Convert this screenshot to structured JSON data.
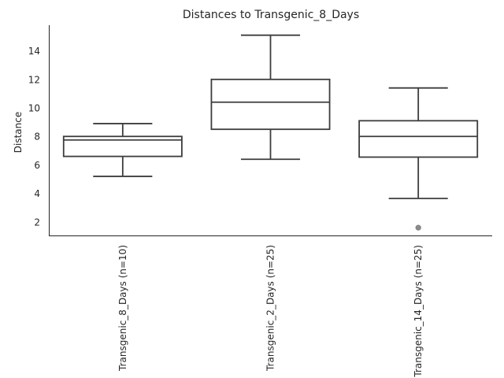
{
  "chart_data": {
    "type": "box",
    "title": "Distances to Transgenic_8_Days",
    "xlabel": "",
    "ylabel": "Distance",
    "ylim": [
      1.0,
      15.8
    ],
    "yticks": [
      2,
      4,
      6,
      8,
      10,
      12,
      14
    ],
    "categories": [
      "Transgenic_8_Days (n=10)",
      "Transgenic_2_Days (n=25)",
      "Transgenic_14_Days (n=25)"
    ],
    "boxes": [
      {
        "whisker_low": 5.2,
        "q1": 6.6,
        "median": 7.75,
        "q3": 8.0,
        "whisker_high": 8.9,
        "outliers": []
      },
      {
        "whisker_low": 6.4,
        "q1": 8.5,
        "median": 10.4,
        "q3": 12.0,
        "whisker_high": 15.1,
        "outliers": []
      },
      {
        "whisker_low": 3.65,
        "q1": 6.55,
        "median": 8.0,
        "q3": 9.1,
        "whisker_high": 11.4,
        "outliers": [
          1.6
        ]
      }
    ],
    "colors": {
      "box_edge": "#3d3d3d",
      "box_fill": "#ffffff",
      "outlier": "#8c8c8c"
    }
  }
}
